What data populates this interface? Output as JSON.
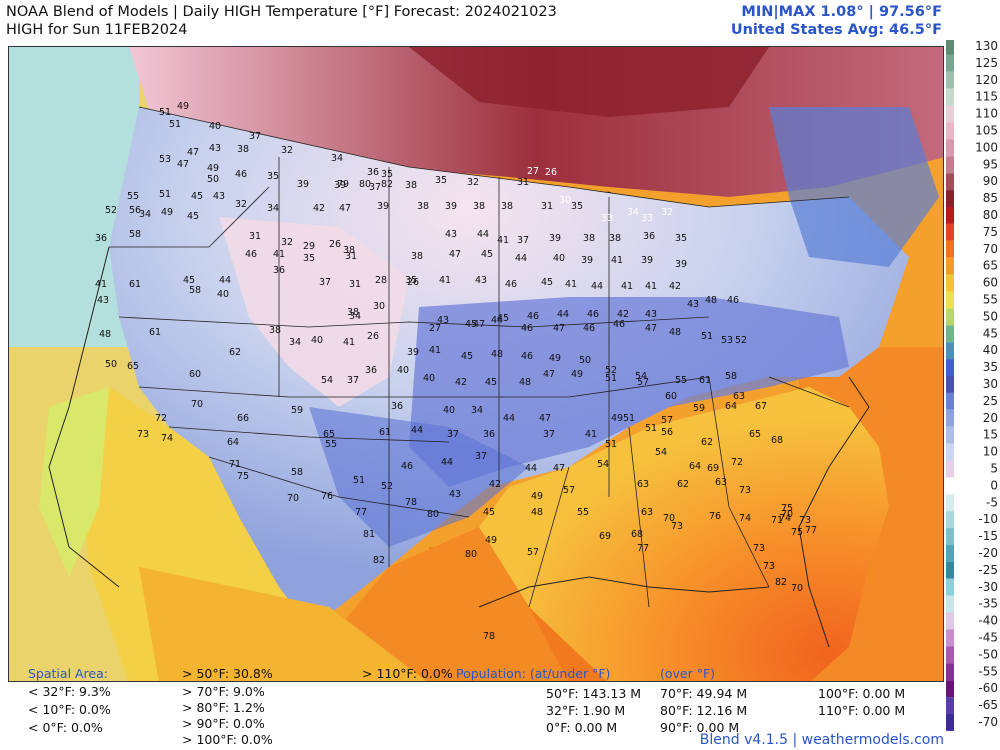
{
  "header": {
    "title_line1": "NOAA Blend of Models | Daily HIGH Temperature [°F] Forecast: 2024021023",
    "title_line2": "HIGH for Sun 11FEB2024",
    "minmax": "MIN|MAX 1.08°  | 97.56°F",
    "us_avg": "United States Avg: 46.5°F"
  },
  "colorbar": {
    "labels": [
      "130",
      "125",
      "120",
      "115",
      "110",
      "105",
      "100",
      "95",
      "90",
      "85",
      "80",
      "75",
      "70",
      "65",
      "60",
      "55",
      "50",
      "45",
      "40",
      "35",
      "30",
      "25",
      "20",
      "15",
      "10",
      "5",
      "0",
      "-5",
      "-10",
      "-15",
      "-20",
      "-25",
      "-30",
      "-35",
      "-40",
      "-45",
      "-50",
      "-55",
      "-60",
      "-65",
      "-70"
    ]
  },
  "map": {
    "cities": [
      {
        "v": "49"
      },
      {
        "v": "51"
      },
      {
        "v": "51"
      },
      {
        "v": "40"
      },
      {
        "v": "37"
      },
      {
        "v": "38"
      },
      {
        "v": "32"
      },
      {
        "v": "34"
      },
      {
        "v": "36"
      },
      {
        "v": "35"
      },
      {
        "v": "35"
      },
      {
        "v": "32"
      },
      {
        "v": "31"
      },
      {
        "v": "27"
      },
      {
        "v": "26"
      },
      {
        "v": "47"
      },
      {
        "v": "43"
      },
      {
        "v": "53"
      },
      {
        "v": "47"
      },
      {
        "v": "49"
      },
      {
        "v": "50"
      },
      {
        "v": "46"
      },
      {
        "v": "35"
      },
      {
        "v": "39"
      },
      {
        "v": "39"
      },
      {
        "v": "37"
      },
      {
        "v": "38"
      },
      {
        "v": "30"
      },
      {
        "v": "33"
      },
      {
        "v": "34"
      },
      {
        "v": "33"
      },
      {
        "v": "32"
      },
      {
        "v": "55"
      },
      {
        "v": "51"
      },
      {
        "v": "45"
      },
      {
        "v": "43"
      },
      {
        "v": "32"
      },
      {
        "v": "34"
      },
      {
        "v": "42"
      },
      {
        "v": "47"
      },
      {
        "v": "39"
      },
      {
        "v": "38"
      },
      {
        "v": "39"
      },
      {
        "v": "38"
      },
      {
        "v": "38"
      },
      {
        "v": "31"
      },
      {
        "v": "35"
      },
      {
        "v": "52"
      },
      {
        "v": "56"
      },
      {
        "v": "34"
      },
      {
        "v": "49"
      },
      {
        "v": "45"
      },
      {
        "v": "31"
      },
      {
        "v": "32"
      },
      {
        "v": "29"
      },
      {
        "v": "26"
      },
      {
        "v": "38"
      },
      {
        "v": "43"
      },
      {
        "v": "44"
      },
      {
        "v": "41"
      },
      {
        "v": "37"
      },
      {
        "v": "39"
      },
      {
        "v": "38"
      },
      {
        "v": "38"
      },
      {
        "v": "36"
      },
      {
        "v": "35"
      },
      {
        "v": "36"
      },
      {
        "v": "58"
      },
      {
        "v": "46"
      },
      {
        "v": "41"
      },
      {
        "v": "35"
      },
      {
        "v": "31"
      },
      {
        "v": "38"
      },
      {
        "v": "47"
      },
      {
        "v": "45"
      },
      {
        "v": "44"
      },
      {
        "v": "40"
      },
      {
        "v": "39"
      },
      {
        "v": "41"
      },
      {
        "v": "39"
      },
      {
        "v": "39"
      },
      {
        "v": "41"
      },
      {
        "v": "61"
      },
      {
        "v": "45"
      },
      {
        "v": "44"
      },
      {
        "v": "36"
      },
      {
        "v": "37"
      },
      {
        "v": "31"
      },
      {
        "v": "28"
      },
      {
        "v": "26"
      },
      {
        "v": "41"
      },
      {
        "v": "43"
      },
      {
        "v": "46"
      },
      {
        "v": "45"
      },
      {
        "v": "41"
      },
      {
        "v": "44"
      },
      {
        "v": "41"
      },
      {
        "v": "41"
      },
      {
        "v": "42"
      },
      {
        "v": "43"
      },
      {
        "v": "58"
      },
      {
        "v": "40"
      },
      {
        "v": "38"
      },
      {
        "v": "30"
      },
      {
        "v": "35"
      },
      {
        "v": "43"
      },
      {
        "v": "45"
      },
      {
        "v": "45"
      },
      {
        "v": "46"
      },
      {
        "v": "44"
      },
      {
        "v": "46"
      },
      {
        "v": "42"
      },
      {
        "v": "43"
      },
      {
        "v": "43"
      },
      {
        "v": "48"
      },
      {
        "v": "46"
      },
      {
        "v": "48"
      },
      {
        "v": "61"
      },
      {
        "v": "38"
      },
      {
        "v": "34"
      },
      {
        "v": "27"
      },
      {
        "v": "47"
      },
      {
        "v": "44"
      },
      {
        "v": "46"
      },
      {
        "v": "47"
      },
      {
        "v": "46"
      },
      {
        "v": "46"
      },
      {
        "v": "47"
      },
      {
        "v": "48"
      },
      {
        "v": "51"
      },
      {
        "v": "53"
      },
      {
        "v": "52"
      },
      {
        "v": "50"
      },
      {
        "v": "65"
      },
      {
        "v": "62"
      },
      {
        "v": "34"
      },
      {
        "v": "40"
      },
      {
        "v": "41"
      },
      {
        "v": "26"
      },
      {
        "v": "39"
      },
      {
        "v": "41"
      },
      {
        "v": "45"
      },
      {
        "v": "48"
      },
      {
        "v": "46"
      },
      {
        "v": "49"
      },
      {
        "v": "50"
      },
      {
        "v": "52"
      },
      {
        "v": "54"
      },
      {
        "v": "55"
      },
      {
        "v": "61"
      },
      {
        "v": "60"
      },
      {
        "v": "54"
      },
      {
        "v": "37"
      },
      {
        "v": "36"
      },
      {
        "v": "40"
      },
      {
        "v": "40"
      },
      {
        "v": "42"
      },
      {
        "v": "45"
      },
      {
        "v": "48"
      },
      {
        "v": "47"
      },
      {
        "v": "49"
      },
      {
        "v": "51"
      },
      {
        "v": "57"
      },
      {
        "v": "60"
      },
      {
        "v": "58"
      },
      {
        "v": "63"
      },
      {
        "v": "72"
      },
      {
        "v": "70"
      },
      {
        "v": "66"
      },
      {
        "v": "59"
      },
      {
        "v": "36"
      },
      {
        "v": "40"
      },
      {
        "v": "34"
      },
      {
        "v": "44"
      },
      {
        "v": "47"
      },
      {
        "v": "49"
      },
      {
        "v": "51"
      },
      {
        "v": "57"
      },
      {
        "v": "59"
      },
      {
        "v": "64"
      },
      {
        "v": "67"
      },
      {
        "v": "73"
      },
      {
        "v": "74"
      },
      {
        "v": "64"
      },
      {
        "v": "65"
      },
      {
        "v": "61"
      },
      {
        "v": "44"
      },
      {
        "v": "37"
      },
      {
        "v": "36"
      },
      {
        "v": "37"
      },
      {
        "v": "41"
      },
      {
        "v": "51"
      },
      {
        "v": "51"
      },
      {
        "v": "56"
      },
      {
        "v": "62"
      },
      {
        "v": "65"
      },
      {
        "v": "68"
      },
      {
        "v": "71"
      },
      {
        "v": "75"
      },
      {
        "v": "58"
      },
      {
        "v": "55"
      },
      {
        "v": "46"
      },
      {
        "v": "44"
      },
      {
        "v": "37"
      },
      {
        "v": "44"
      },
      {
        "v": "47"
      },
      {
        "v": "54"
      },
      {
        "v": "54"
      },
      {
        "v": "64"
      },
      {
        "v": "69"
      },
      {
        "v": "72"
      },
      {
        "v": "70"
      },
      {
        "v": "76"
      },
      {
        "v": "51"
      },
      {
        "v": "52"
      },
      {
        "v": "43"
      },
      {
        "v": "42"
      },
      {
        "v": "49"
      },
      {
        "v": "57"
      },
      {
        "v": "63"
      },
      {
        "v": "62"
      },
      {
        "v": "63"
      },
      {
        "v": "73"
      },
      {
        "v": "75"
      },
      {
        "v": "74"
      },
      {
        "v": "73"
      },
      {
        "v": "77"
      },
      {
        "v": "78"
      },
      {
        "v": "80"
      },
      {
        "v": "45"
      },
      {
        "v": "48"
      },
      {
        "v": "55"
      },
      {
        "v": "63"
      },
      {
        "v": "70"
      },
      {
        "v": "73"
      },
      {
        "v": "76"
      },
      {
        "v": "74"
      },
      {
        "v": "71"
      },
      {
        "v": "70"
      },
      {
        "v": "75"
      },
      {
        "v": "77"
      },
      {
        "v": "81"
      },
      {
        "v": "82"
      },
      {
        "v": "80"
      },
      {
        "v": "49"
      },
      {
        "v": "57"
      },
      {
        "v": "69"
      },
      {
        "v": "68"
      },
      {
        "v": "77"
      },
      {
        "v": "73"
      },
      {
        "v": "73"
      },
      {
        "v": "82"
      },
      {
        "v": "70"
      },
      {
        "v": "78"
      },
      {
        "v": "79"
      },
      {
        "v": "80"
      },
      {
        "v": "82"
      }
    ]
  },
  "footer": {
    "spatial_head": "Spatial Area:",
    "spatial_rows": [
      "< 32°F: 9.3%",
      "< 10°F: 0.0%",
      "< 0°F: 0.0%"
    ],
    "spatial_rows2": [
      "> 50°F: 30.8%",
      "> 70°F: 9.0%",
      "> 80°F: 1.2%",
      "> 90°F: 0.0%",
      "> 100°F: 0.0%"
    ],
    "spatial_110": "> 110°F: 0.0%",
    "pop_head": "Population: (at/under °F)",
    "pop_over_head": "(over °F)",
    "pop_rows": [
      "50°F: 143.13 M",
      "32°F: 1.90 M",
      "0°F: 0.00 M"
    ],
    "pop_rows2": [
      "70°F: 49.94 M",
      "80°F: 12.16 M",
      "90°F: 0.00 M"
    ],
    "pop_rows3": [
      "100°F: 0.00 M",
      "110°F: 0.00 M"
    ],
    "brand": "Blend v4.1.5 | weathermodels.com"
  }
}
